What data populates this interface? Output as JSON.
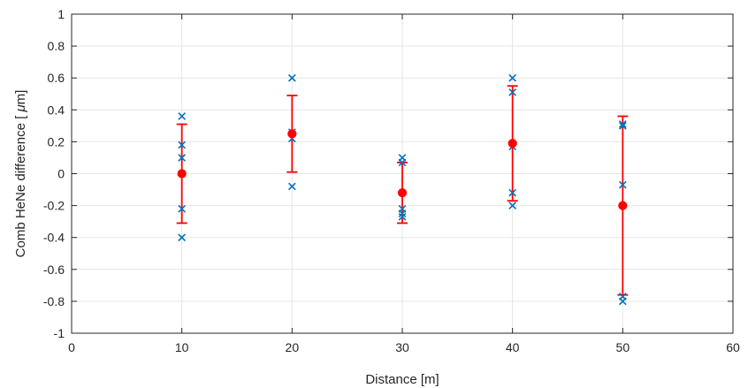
{
  "chart_data": {
    "type": "scatter",
    "xlabel": "Distance [m]",
    "ylabel_prefix": "Comb HeNe difference [ ",
    "ylabel_mu": "μ",
    "ylabel_suffix": "m]",
    "xlim": [
      0,
      60
    ],
    "ylim": [
      -1,
      1
    ],
    "x_ticks": [
      0,
      10,
      20,
      30,
      40,
      50,
      60
    ],
    "y_ticks": [
      -1,
      -0.8,
      -0.6,
      -0.4,
      -0.2,
      0,
      0.2,
      0.4,
      0.6,
      0.8,
      1
    ],
    "x_tick_labels": [
      "0",
      "10",
      "20",
      "30",
      "40",
      "50",
      "60"
    ],
    "y_tick_labels": [
      "-1",
      "-0.8",
      "-0.6",
      "-0.4",
      "-0.2",
      "0",
      "0.2",
      "0.4",
      "0.6",
      "0.8",
      "1"
    ],
    "grid": true,
    "series": [
      {
        "marker": "x",
        "color": "#0072BD",
        "points": [
          [
            10,
            0.36
          ],
          [
            10,
            0.18
          ],
          [
            10,
            0.1
          ],
          [
            10,
            -0.22
          ],
          [
            10,
            -0.4
          ],
          [
            20,
            0.6
          ],
          [
            20,
            0.26
          ],
          [
            20,
            0.22
          ],
          [
            20,
            -0.08
          ],
          [
            30,
            0.1
          ],
          [
            30,
            0.07
          ],
          [
            30,
            -0.22
          ],
          [
            30,
            -0.25
          ],
          [
            30,
            -0.27
          ],
          [
            40,
            0.6
          ],
          [
            40,
            0.51
          ],
          [
            40,
            0.17
          ],
          [
            40,
            -0.12
          ],
          [
            40,
            -0.2
          ],
          [
            50,
            0.31
          ],
          [
            50,
            0.3
          ],
          [
            50,
            -0.07
          ],
          [
            50,
            -0.77
          ],
          [
            50,
            -0.8
          ]
        ]
      },
      {
        "marker": "o",
        "color": "#FF0000",
        "error_bars": true,
        "points": [
          {
            "x": 10,
            "y": 0.0,
            "low": -0.31,
            "high": 0.31
          },
          {
            "x": 20,
            "y": 0.25,
            "low": 0.01,
            "high": 0.49
          },
          {
            "x": 30,
            "y": -0.12,
            "low": -0.31,
            "high": 0.07
          },
          {
            "x": 40,
            "y": 0.19,
            "low": -0.17,
            "high": 0.55
          },
          {
            "x": 50,
            "y": -0.2,
            "low": -0.76,
            "high": 0.36
          }
        ]
      }
    ]
  }
}
